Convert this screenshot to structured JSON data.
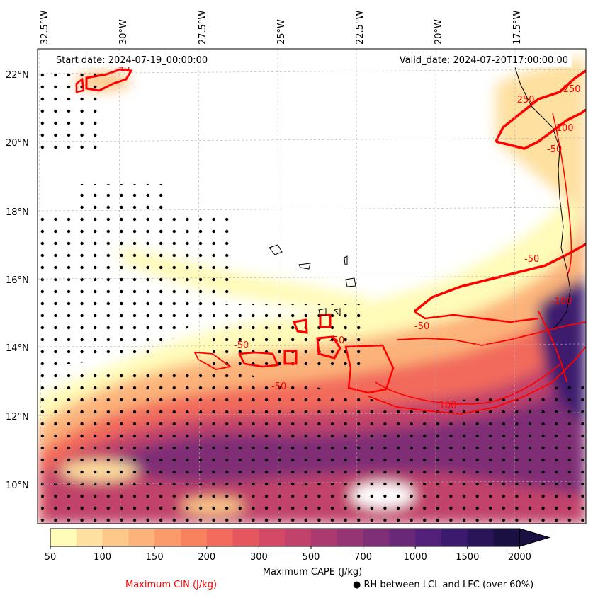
{
  "header": {
    "start_date": "Start date: 2024-07-19_00:00:00",
    "valid_date": "Valid_date: 2024-07-20T17:00:00.00"
  },
  "axes": {
    "longitude_labels": [
      "32.5°W",
      "30°W",
      "27.5°W",
      "25°W",
      "22.5°W",
      "20°W",
      "17.5°W"
    ],
    "latitude_labels": [
      "22°N",
      "20°N",
      "18°N",
      "16°N",
      "14°N",
      "12°N",
      "10°N"
    ]
  },
  "contours": {
    "color": "#ff0000",
    "labels": [
      "-50",
      "-50",
      "-50",
      "-50",
      "-100",
      "-50",
      "-100",
      "-50",
      "-250",
      "-250",
      "-50",
      "-100"
    ]
  },
  "colorbar": {
    "ticks": [
      "50",
      "100",
      "150",
      "200",
      "300",
      "500",
      "700",
      "1000",
      "1500",
      "2000"
    ],
    "colors": [
      "#fffbb8",
      "#fee0a0",
      "#fdc98a",
      "#fcb37a",
      "#fb9a6a",
      "#f9825e",
      "#f26b5c",
      "#e5565f",
      "#d44a66",
      "#c1426b",
      "#aa3a70",
      "#953573",
      "#7f2f76",
      "#6a2978",
      "#53207a",
      "#3c1a6e",
      "#2a1558",
      "#1a1042"
    ],
    "label": "Maximum CAPE (J/kg)"
  },
  "legend": {
    "cin_label": "Maximum CIN (J/kg)",
    "cin_color": "#ff0000",
    "rh_label": "● RH between LCL and LFC (over 60%)"
  }
}
